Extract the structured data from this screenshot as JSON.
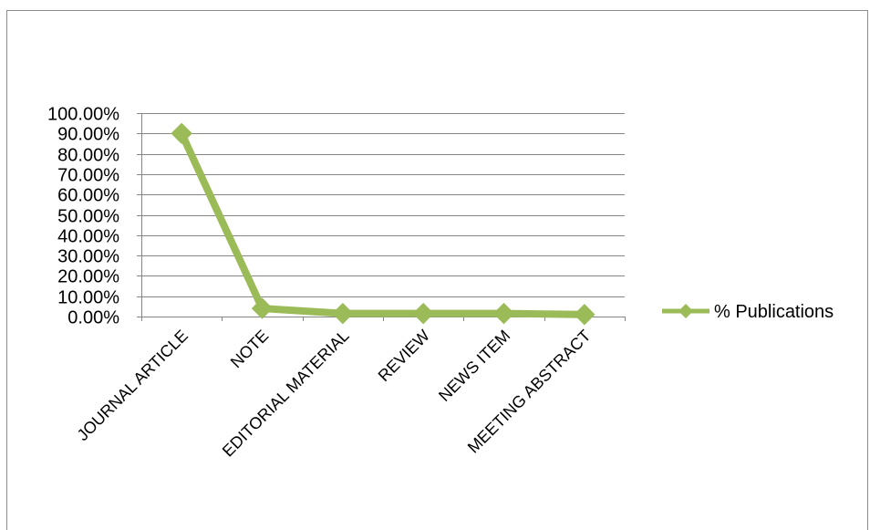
{
  "chart_data": {
    "type": "line",
    "title": "",
    "xlabel": "",
    "ylabel": "",
    "categories": [
      "JOURNAL ARTICLE",
      "NOTE",
      "EDITORIAL MATERIAL",
      "REVIEW",
      "NEWS ITEM",
      "MEETING ABSTRACT"
    ],
    "series": [
      {
        "name": "% Publications",
        "values": [
          0.9,
          0.04,
          0.015,
          0.015,
          0.015,
          0.01
        ],
        "color": "#9bbb59"
      }
    ],
    "ylim": [
      0,
      1
    ],
    "yticks": [
      "0.00%",
      "10.00%",
      "20.00%",
      "30.00%",
      "40.00%",
      "50.00%",
      "60.00%",
      "70.00%",
      "80.00%",
      "90.00%",
      "100.00%"
    ],
    "grid": true,
    "legend_position": "right",
    "marker": "diamond"
  }
}
